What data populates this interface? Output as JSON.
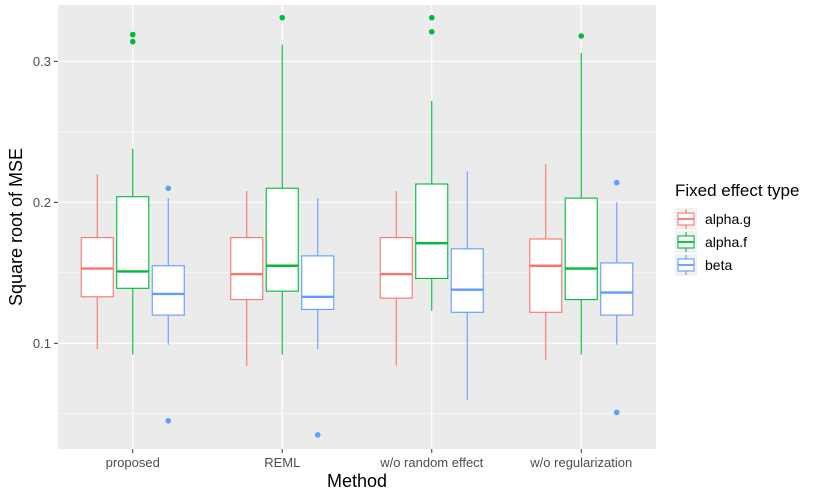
{
  "chart_data": {
    "type": "boxplot",
    "xlabel": "Method",
    "ylabel": "Square root of MSE",
    "ylim": [
      0.025,
      0.34
    ],
    "yticks": [
      0.1,
      0.2,
      0.3
    ],
    "ytick_labels": [
      "0.1",
      "0.2",
      "0.3"
    ],
    "categories": [
      "proposed",
      "REML",
      "w/o random effect",
      "w/o regularization"
    ],
    "legend": {
      "title": "Fixed effect type",
      "position": "right"
    },
    "series": [
      {
        "name": "alpha.g",
        "color": "#F8766D",
        "boxes": [
          {
            "category": "proposed",
            "min": 0.096,
            "q1": 0.133,
            "median": 0.153,
            "q3": 0.175,
            "max": 0.22,
            "outliers": []
          },
          {
            "category": "REML",
            "min": 0.084,
            "q1": 0.131,
            "median": 0.149,
            "q3": 0.175,
            "max": 0.208,
            "outliers": []
          },
          {
            "category": "w/o random effect",
            "min": 0.084,
            "q1": 0.132,
            "median": 0.149,
            "q3": 0.175,
            "max": 0.208,
            "outliers": []
          },
          {
            "category": "w/o regularization",
            "min": 0.088,
            "q1": 0.122,
            "median": 0.155,
            "q3": 0.174,
            "max": 0.227,
            "outliers": []
          }
        ]
      },
      {
        "name": "alpha.f",
        "color": "#00BA38",
        "boxes": [
          {
            "category": "proposed",
            "min": 0.092,
            "q1": 0.139,
            "median": 0.151,
            "q3": 0.204,
            "max": 0.238,
            "outliers": [
              0.314,
              0.319
            ]
          },
          {
            "category": "REML",
            "min": 0.092,
            "q1": 0.137,
            "median": 0.155,
            "q3": 0.21,
            "max": 0.312,
            "outliers": [
              0.331
            ]
          },
          {
            "category": "w/o random effect",
            "min": 0.123,
            "q1": 0.146,
            "median": 0.171,
            "q3": 0.213,
            "max": 0.272,
            "outliers": [
              0.321,
              0.331
            ]
          },
          {
            "category": "w/o regularization",
            "min": 0.092,
            "q1": 0.131,
            "median": 0.153,
            "q3": 0.203,
            "max": 0.306,
            "outliers": [
              0.318
            ]
          }
        ]
      },
      {
        "name": "beta",
        "color": "#619CFF",
        "boxes": [
          {
            "category": "proposed",
            "min": 0.099,
            "q1": 0.12,
            "median": 0.135,
            "q3": 0.155,
            "max": 0.203,
            "outliers": [
              0.045,
              0.21
            ]
          },
          {
            "category": "REML",
            "min": 0.096,
            "q1": 0.124,
            "median": 0.133,
            "q3": 0.162,
            "max": 0.203,
            "outliers": [
              0.035
            ]
          },
          {
            "category": "w/o random effect",
            "min": 0.06,
            "q1": 0.122,
            "median": 0.138,
            "q3": 0.167,
            "max": 0.222,
            "outliers": []
          },
          {
            "category": "w/o regularization",
            "min": 0.099,
            "q1": 0.12,
            "median": 0.136,
            "q3": 0.157,
            "max": 0.2,
            "outliers": [
              0.051,
              0.214
            ]
          }
        ]
      }
    ]
  }
}
